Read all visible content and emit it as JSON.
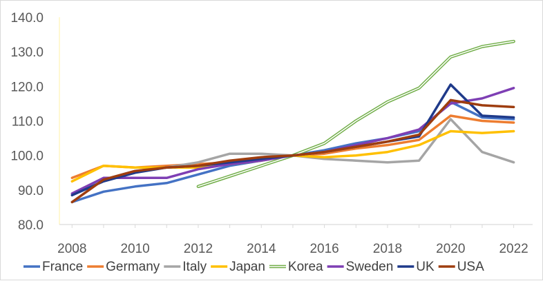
{
  "chart_data": {
    "type": "line",
    "title": "",
    "xlabel": "",
    "ylabel": "",
    "x": [
      2008,
      2009,
      2010,
      2011,
      2012,
      2013,
      2014,
      2015,
      2016,
      2017,
      2018,
      2019,
      2020,
      2021,
      2022
    ],
    "x_tick_labels": [
      "2008",
      "2010",
      "2012",
      "2014",
      "2016",
      "2018",
      "2020",
      "2022"
    ],
    "y_tick_labels": [
      "80.0",
      "90.0",
      "100.0",
      "110.0",
      "120.0",
      "130.0",
      "140.0"
    ],
    "ylim": [
      80,
      140
    ],
    "y_ticks": [
      80,
      90,
      100,
      110,
      120,
      130,
      140
    ],
    "grid": false,
    "legend_position": "bottom",
    "series": [
      {
        "name": "France",
        "color": "#4472c4",
        "style": "solid",
        "values": [
          86.5,
          89.5,
          91.0,
          92.0,
          94.5,
          97.0,
          98.5,
          100.0,
          101.5,
          103.5,
          105.0,
          107.0,
          115.5,
          111.0,
          110.5
        ]
      },
      {
        "name": "Germany",
        "color": "#ed7d31",
        "style": "solid",
        "values": [
          93.5,
          97.0,
          96.5,
          97.0,
          97.5,
          98.0,
          99.0,
          100.0,
          100.5,
          102.0,
          103.0,
          104.5,
          111.5,
          110.0,
          109.5
        ]
      },
      {
        "name": "Italy",
        "color": "#a5a5a5",
        "style": "solid",
        "values": [
          88.5,
          93.0,
          95.5,
          96.5,
          98.0,
          100.5,
          100.5,
          100.0,
          99.0,
          98.5,
          98.0,
          98.5,
          110.5,
          101.0,
          98.0
        ]
      },
      {
        "name": "Japan",
        "color": "#ffc000",
        "style": "solid",
        "values": [
          92.5,
          97.0,
          96.5,
          96.5,
          96.5,
          97.5,
          98.5,
          100.0,
          99.5,
          100.0,
          101.0,
          103.0,
          107.0,
          106.5,
          107.0
        ]
      },
      {
        "name": "Korea",
        "color": "#70ad47",
        "style": "double",
        "values": [
          null,
          null,
          null,
          null,
          91.0,
          94.0,
          97.0,
          100.0,
          103.5,
          110.0,
          115.5,
          119.5,
          128.5,
          131.5,
          133.0
        ]
      },
      {
        "name": "Sweden",
        "color": "#7e3fb4",
        "style": "solid",
        "values": [
          89.0,
          93.5,
          93.5,
          93.5,
          96.0,
          97.5,
          98.5,
          100.0,
          101.0,
          103.0,
          105.0,
          107.5,
          115.0,
          116.5,
          119.5
        ]
      },
      {
        "name": "UK",
        "color": "#1f3a8a",
        "style": "solid",
        "values": [
          88.5,
          92.5,
          95.0,
          96.5,
          97.0,
          98.0,
          99.0,
          100.0,
          101.0,
          102.5,
          104.0,
          105.5,
          120.5,
          111.5,
          111.0
        ]
      },
      {
        "name": "USA",
        "color": "#9e3d0f",
        "style": "solid",
        "values": [
          86.5,
          93.0,
          95.5,
          96.5,
          97.0,
          98.5,
          99.5,
          100.0,
          101.0,
          102.5,
          104.0,
          106.0,
          116.0,
          114.5,
          114.0
        ]
      }
    ]
  }
}
